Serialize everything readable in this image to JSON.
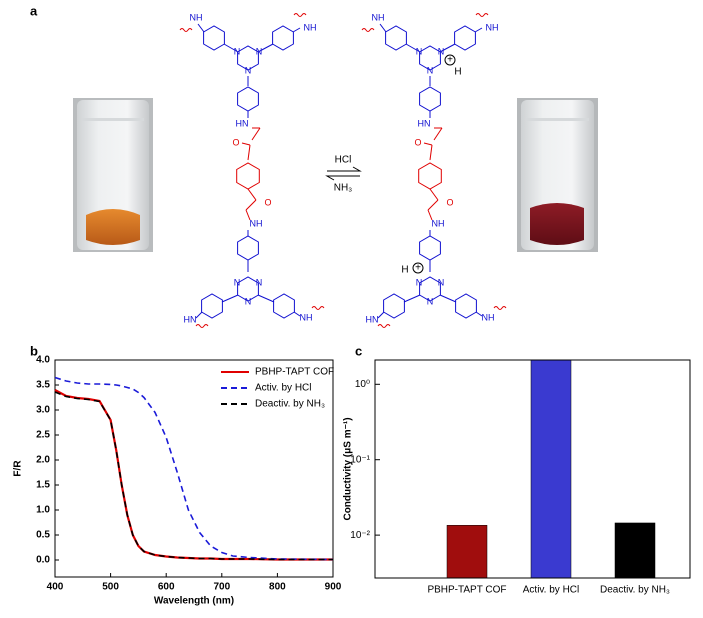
{
  "diagram": {
    "label": "a",
    "forward": "HCl",
    "backward": "NH₃",
    "atom_n": "N",
    "atom_nh": "NH",
    "atom_hn": "HN",
    "atom_o": "O",
    "atom_h": "H",
    "charge": "+"
  },
  "chart_data": [
    {
      "type": "line",
      "panel_label": "b",
      "x_label": "Wavelength (nm)",
      "y_label": "F/R",
      "x": [
        400,
        420,
        440,
        460,
        480,
        500,
        510,
        520,
        530,
        540,
        550,
        560,
        580,
        600,
        620,
        640,
        660,
        680,
        700,
        720,
        750,
        800,
        900
      ],
      "series": [
        {
          "name": "PBHP-TAPT COF",
          "color": "#e00000",
          "dash": "solid",
          "values": [
            3.4,
            3.28,
            3.24,
            3.22,
            3.18,
            2.8,
            2.2,
            1.5,
            0.9,
            0.5,
            0.28,
            0.17,
            0.1,
            0.07,
            0.05,
            0.04,
            0.03,
            0.03,
            0.02,
            0.02,
            0.02,
            0.01,
            0.01
          ]
        },
        {
          "name": "Activ. by HCl",
          "color": "#1a1ad8",
          "dash": "dashed",
          "values": [
            3.65,
            3.58,
            3.54,
            3.52,
            3.52,
            3.51,
            3.5,
            3.48,
            3.45,
            3.42,
            3.35,
            3.25,
            2.95,
            2.45,
            1.75,
            1.0,
            0.55,
            0.28,
            0.15,
            0.08,
            0.05,
            0.02,
            0.01
          ]
        },
        {
          "name": "Deactiv. by NH₃",
          "color": "#000000",
          "dash": "dashed",
          "values": [
            3.36,
            3.27,
            3.23,
            3.21,
            3.17,
            2.8,
            2.2,
            1.5,
            0.9,
            0.5,
            0.28,
            0.17,
            0.1,
            0.07,
            0.05,
            0.04,
            0.03,
            0.03,
            0.02,
            0.02,
            0.02,
            0.01,
            0.01
          ]
        }
      ],
      "xlim": [
        400,
        900
      ],
      "xticks": [
        400,
        500,
        600,
        700,
        800,
        900
      ],
      "ylim": [
        -0.34,
        4.0
      ],
      "yticks": [
        {
          "value": 0,
          "label": "0.0"
        },
        0.5,
        {
          "value": 1,
          "label": "1.0"
        },
        1.5,
        {
          "value": 2,
          "label": "2.0"
        },
        2.5,
        {
          "value": 3,
          "label": "3.0"
        },
        3.5,
        {
          "value": 4,
          "label": "4.0"
        }
      ],
      "legend": "upper right"
    },
    {
      "type": "bar",
      "panel_label": "c",
      "y_label": "Conductivity (μS m⁻¹)",
      "log_scale": true,
      "categories": [
        "PBHP-TAPT COF",
        "Activ. by HCl",
        "Deactiv. by NH₃"
      ],
      "values": [
        0.0135,
        2.1,
        0.0145
      ],
      "colors": [
        "#a00d0d",
        "#3a3ad0",
        "#000000"
      ],
      "ylim": [
        0.0027,
        2.1
      ],
      "yticks": [
        {
          "value": 0.01,
          "label": "10⁻²"
        },
        {
          "value": 0.1,
          "label": "10⁻¹"
        },
        {
          "value": 1,
          "label": "10⁰"
        }
      ]
    }
  ]
}
